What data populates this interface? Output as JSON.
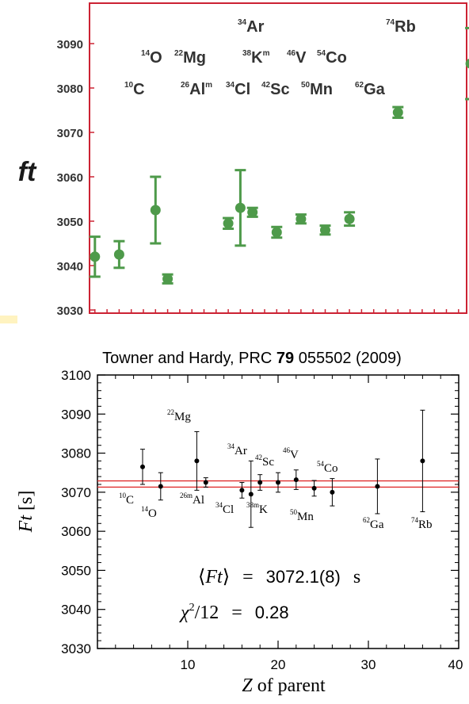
{
  "chart_data": [
    {
      "type": "scatter",
      "ylabel": "ft",
      "ylim": [
        3030,
        3095
      ],
      "yticks": [
        3030,
        3040,
        3050,
        3060,
        3070,
        3080,
        3090
      ],
      "xlim": [
        0,
        38
      ],
      "x_ticks_labeled": false,
      "grid": false,
      "frame_color": "#cc2233",
      "marker_color": "#4e9a4a",
      "points": [
        {
          "x": 6,
          "y": 3042.0,
          "err": 4.5
        },
        {
          "x": 8,
          "y": 3042.5,
          "err": 3.0
        },
        {
          "x": 11,
          "y": 3052.5,
          "err": 7.5
        },
        {
          "x": 12,
          "y": 3037.0,
          "err": 1.0
        },
        {
          "x": 17,
          "y": 3049.5,
          "err": 1.2
        },
        {
          "x": 18,
          "y": 3053.0,
          "err": 8.5
        },
        {
          "x": 19,
          "y": 3052.0,
          "err": 1.0
        },
        {
          "x": 21,
          "y": 3047.5,
          "err": 1.2
        },
        {
          "x": 23,
          "y": 3050.5,
          "err": 1.0
        },
        {
          "x": 25,
          "y": 3048.0,
          "err": 1.0
        },
        {
          "x": 27,
          "y": 3050.5,
          "err": 1.5
        },
        {
          "x": 31,
          "y": 3074.5,
          "err": 1.2
        },
        {
          "x": 37,
          "y": 3085.5,
          "err": 8.0
        }
      ],
      "nuclide_labels": [
        {
          "mass": "34",
          "meta": "",
          "el": "Ar",
          "id": "ar34"
        },
        {
          "mass": "74",
          "meta": "",
          "el": "Rb",
          "id": "rb74"
        },
        {
          "mass": "14",
          "meta": "",
          "el": "O",
          "id": "o14"
        },
        {
          "mass": "22",
          "meta": "",
          "el": "Mg",
          "id": "mg22"
        },
        {
          "mass": "38",
          "meta": "m",
          "el": "K",
          "id": "k38m"
        },
        {
          "mass": "46",
          "meta": "",
          "el": "V",
          "id": "v46"
        },
        {
          "mass": "54",
          "meta": "",
          "el": "Co",
          "id": "co54"
        },
        {
          "mass": "10",
          "meta": "",
          "el": "C",
          "id": "c10"
        },
        {
          "mass": "26",
          "meta": "m",
          "el": "Al",
          "id": "al26m"
        },
        {
          "mass": "34",
          "meta": "",
          "el": "Cl",
          "id": "cl34"
        },
        {
          "mass": "42",
          "meta": "",
          "el": "Sc",
          "id": "sc42"
        },
        {
          "mass": "50",
          "meta": "",
          "el": "Mn",
          "id": "mn50"
        },
        {
          "mass": "62",
          "meta": "",
          "el": "Ga",
          "id": "ga62"
        }
      ]
    },
    {
      "type": "scatter",
      "title_parts": {
        "pre": "Towner and Hardy, PRC ",
        "bold": "79",
        "post": " 055502 (2009)"
      },
      "xlabel_parts": {
        "var": "Z",
        "rest": " of parent"
      },
      "ylabel_parts": {
        "var": "Ft",
        "unit": " [s]"
      },
      "xlim": [
        0,
        40
      ],
      "ylim": [
        3030,
        3100
      ],
      "xticks": [
        10,
        20,
        30,
        40
      ],
      "yticks": [
        3030,
        3040,
        3050,
        3060,
        3070,
        3080,
        3090,
        3100
      ],
      "grid": false,
      "band": {
        "lower": 3071.3,
        "upper": 3072.9,
        "color": "#e03030"
      },
      "points": [
        {
          "x": 5,
          "y": 3076.5,
          "err": 4.5
        },
        {
          "x": 7,
          "y": 3071.5,
          "err": 3.5
        },
        {
          "x": 11,
          "y": 3078.0,
          "err": 7.5
        },
        {
          "x": 12,
          "y": 3072.5,
          "err": 1.2
        },
        {
          "x": 16,
          "y": 3070.5,
          "err": 2.0
        },
        {
          "x": 17,
          "y": 3069.5,
          "err": 8.5
        },
        {
          "x": 18,
          "y": 3072.5,
          "err": 2.0
        },
        {
          "x": 20,
          "y": 3072.5,
          "err": 2.5
        },
        {
          "x": 22,
          "y": 3073.2,
          "err": 2.5
        },
        {
          "x": 24,
          "y": 3071.0,
          "err": 2.0
        },
        {
          "x": 26,
          "y": 3070.0,
          "err": 3.5
        },
        {
          "x": 31,
          "y": 3071.5,
          "err": 7.0
        },
        {
          "x": 36,
          "y": 3078.0,
          "err": 13.0
        }
      ],
      "nuclide_labels": [
        {
          "mass": "22",
          "el": "Mg",
          "id": "mg22"
        },
        {
          "mass": "34",
          "el": "Ar",
          "id": "ar34"
        },
        {
          "mass": "42",
          "el": "Sc",
          "id": "sc42"
        },
        {
          "mass": "46",
          "el": "V",
          "id": "v46"
        },
        {
          "mass": "54",
          "el": "Co",
          "id": "co54"
        },
        {
          "mass": "10",
          "el": "C",
          "id": "c10"
        },
        {
          "mass": "14",
          "el": "O",
          "id": "o14"
        },
        {
          "mass": "26m",
          "el": "Al",
          "id": "al26m"
        },
        {
          "mass": "34",
          "el": "Cl",
          "id": "cl34"
        },
        {
          "mass": "38m",
          "el": "K",
          "id": "k38m"
        },
        {
          "mass": "50",
          "el": "Mn",
          "id": "mn50"
        },
        {
          "mass": "62",
          "el": "Ga",
          "id": "ga62"
        },
        {
          "mass": "74",
          "el": "Rb",
          "id": "rb74"
        }
      ],
      "annotation": {
        "mean": {
          "lhs": "Ft",
          "eq": "=",
          "value": "3072.1(8)",
          "unit": "s"
        },
        "chi2": {
          "lhs": "χ",
          "exp": "2",
          "den": "/12",
          "eq": "=",
          "value": "0.28"
        }
      }
    }
  ]
}
